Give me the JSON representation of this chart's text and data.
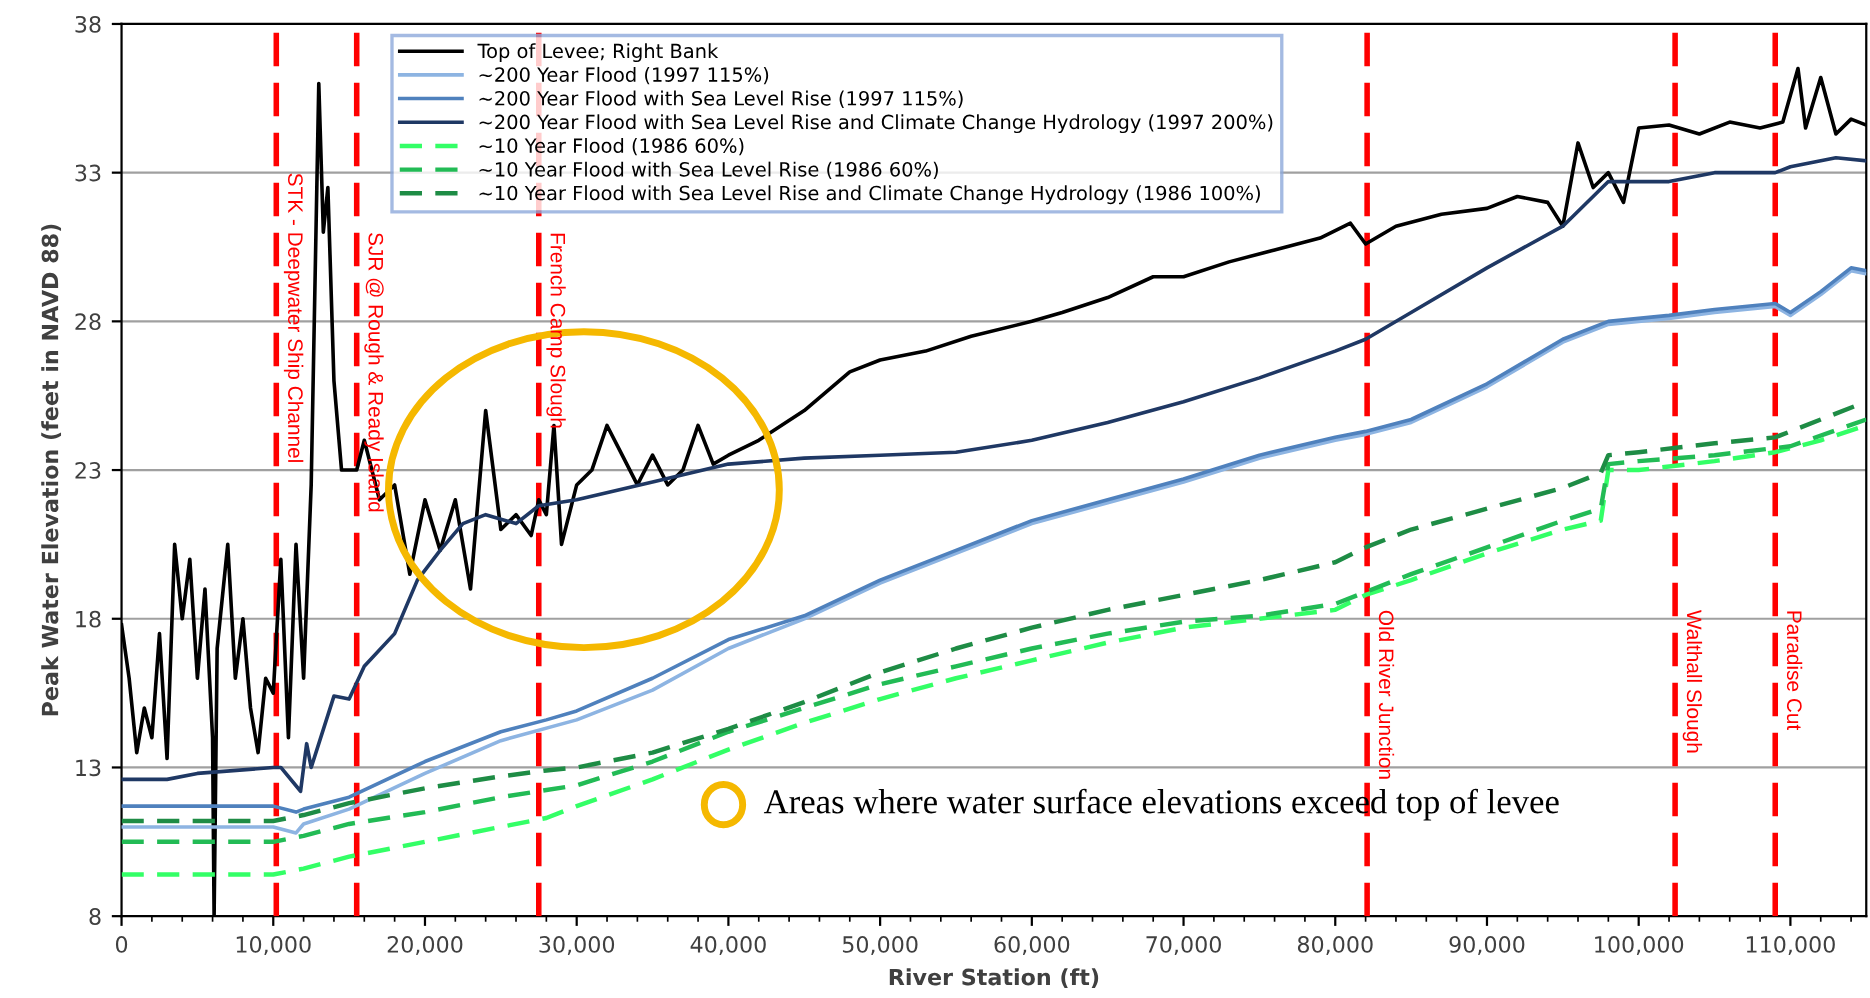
{
  "chart_data": {
    "type": "line",
    "xlabel": "River Station (ft)",
    "ylabel": "Peak Water Elevation (feet in NAVD 88)",
    "xlim": [
      0,
      115000
    ],
    "ylim": [
      8,
      38
    ],
    "xticks": [
      0,
      {
        "value": 10000,
        "label": "10,000"
      },
      {
        "value": 20000,
        "label": "20,000"
      },
      {
        "value": 30000,
        "label": "30,000"
      },
      {
        "value": 40000,
        "label": "40,000"
      },
      {
        "value": 50000,
        "label": "50,000"
      },
      {
        "value": 60000,
        "label": "60,000"
      },
      {
        "value": 70000,
        "label": "70,000"
      },
      {
        "value": 80000,
        "label": "80,000"
      },
      {
        "value": 90000,
        "label": "90,000"
      },
      {
        "value": 100000,
        "label": "100,000"
      },
      {
        "value": 110000,
        "label": "110,000"
      }
    ],
    "yticks": [
      8,
      13,
      18,
      23,
      28,
      33,
      38
    ],
    "grid": "y",
    "legend": "top",
    "marker": "none",
    "series": [
      {
        "name": "Top of Levee; Right Bank",
        "color": "#000000",
        "line_style": "solid",
        "x": [
          0,
          500,
          1000,
          1500,
          2000,
          2500,
          3000,
          3500,
          4000,
          4500,
          5000,
          5500,
          6000,
          6100,
          6300,
          7000,
          7500,
          8000,
          8500,
          9000,
          9500,
          10000,
          10500,
          11000,
          11500,
          12000,
          12500,
          13000,
          13300,
          13600,
          14000,
          14500,
          15500,
          16000,
          17000,
          18000,
          19000,
          20000,
          21000,
          22000,
          23000,
          24000,
          25000,
          26000,
          27000,
          27500,
          28000,
          28500,
          29000,
          30000,
          31000,
          32000,
          33000,
          34000,
          35000,
          36000,
          37000,
          38000,
          39000,
          40000,
          42000,
          45000,
          48000,
          50000,
          53000,
          56000,
          60000,
          62000,
          65000,
          68000,
          70000,
          73000,
          76000,
          79000,
          81000,
          82000,
          84000,
          87000,
          90000,
          92000,
          94000,
          95000,
          96000,
          97000,
          98000,
          99000,
          100000,
          102000,
          104000,
          106000,
          108000,
          109500,
          110500,
          111000,
          112000,
          113000,
          114000,
          115000
        ],
        "values": [
          17.8,
          16,
          13.5,
          15,
          14,
          17.5,
          13.3,
          20.5,
          18,
          20,
          16,
          19,
          14,
          8,
          17,
          20.5,
          16,
          18,
          15,
          13.5,
          16,
          15.5,
          20,
          14,
          20.5,
          16,
          22.5,
          36,
          31,
          32.5,
          26,
          23,
          23,
          24,
          22,
          22.5,
          19.5,
          22,
          20.3,
          22,
          19,
          25,
          21,
          21.5,
          20.8,
          22,
          21.5,
          24.5,
          20.5,
          22.5,
          23,
          24.5,
          23.5,
          22.5,
          23.5,
          22.5,
          23,
          24.5,
          23.2,
          23.5,
          24,
          25,
          26.3,
          26.7,
          27,
          27.5,
          28,
          28.3,
          28.8,
          29.5,
          29.5,
          30,
          30.4,
          30.8,
          31.3,
          30.6,
          31.2,
          31.6,
          31.8,
          32.2,
          32,
          31.2,
          34,
          32.5,
          33,
          32,
          34.5,
          34.6,
          34.3,
          34.7,
          34.5,
          34.7,
          36.5,
          34.5,
          36.2,
          34.3,
          34.8,
          34.6
        ]
      },
      {
        "name": "~200 Year Flood (1997 115%)",
        "color": "#8db4e2",
        "line_style": "solid",
        "x": [
          0,
          10000,
          11500,
          12000,
          15000,
          20000,
          25000,
          30000,
          35000,
          40000,
          45000,
          50000,
          55000,
          60000,
          65000,
          70000,
          75000,
          80000,
          82000,
          85000,
          90000,
          95000,
          98000,
          102000,
          105000,
          109000,
          110000,
          112000,
          114000,
          115000
        ],
        "values": [
          11.0,
          11.0,
          10.8,
          11.1,
          11.6,
          12.8,
          13.9,
          14.6,
          15.6,
          17.0,
          18.0,
          19.2,
          20.2,
          21.2,
          21.9,
          22.6,
          23.4,
          24.0,
          24.2,
          24.6,
          25.8,
          27.3,
          27.9,
          28.1,
          28.3,
          28.5,
          28.2,
          28.9,
          29.7,
          29.6
        ]
      },
      {
        "name": "~200 Year Flood with Sea Level Rise (1997 115%)",
        "color": "#4f81bd",
        "line_style": "solid",
        "x": [
          0,
          10000,
          11500,
          12000,
          15000,
          20000,
          25000,
          28000,
          30000,
          35000,
          40000,
          45000,
          50000,
          55000,
          60000,
          65000,
          70000,
          75000,
          80000,
          82000,
          85000,
          90000,
          95000,
          98000,
          102000,
          105000,
          109000,
          110000,
          112000,
          114000,
          115000
        ],
        "values": [
          11.7,
          11.7,
          11.5,
          11.6,
          12.0,
          13.2,
          14.2,
          14.6,
          14.9,
          16.0,
          17.3,
          18.1,
          19.3,
          20.3,
          21.3,
          22.0,
          22.7,
          23.5,
          24.1,
          24.3,
          24.7,
          25.9,
          27.4,
          28.0,
          28.2,
          28.4,
          28.6,
          28.3,
          29.0,
          29.8,
          29.7
        ]
      },
      {
        "name": "~200 Year Flood with Sea Level Rise and Climate Change Hydrology (1997 200%)",
        "color": "#1f3864",
        "line_style": "solid",
        "x": [
          0,
          3000,
          5000,
          10000,
          10500,
          11800,
          12200,
          12500,
          14000,
          15000,
          16000,
          18000,
          19500,
          21000,
          22500,
          24000,
          26000,
          27500,
          30000,
          35000,
          40000,
          45000,
          50000,
          55000,
          60000,
          65000,
          70000,
          75000,
          80000,
          82000,
          85000,
          90000,
          95000,
          98000,
          100000,
          102000,
          105000,
          109000,
          110000,
          113000,
          115000
        ],
        "values": [
          12.6,
          12.6,
          12.8,
          13.0,
          13.0,
          12.2,
          13.8,
          13.0,
          15.4,
          15.3,
          16.4,
          17.5,
          19.3,
          20.3,
          21.2,
          21.5,
          21.2,
          21.8,
          22.0,
          22.6,
          23.2,
          23.4,
          23.5,
          23.6,
          24.0,
          24.6,
          25.3,
          26.1,
          27.0,
          27.4,
          28.3,
          29.8,
          31.2,
          32.7,
          32.7,
          32.7,
          33.0,
          33.0,
          33.2,
          33.5,
          33.4
        ]
      },
      {
        "name": "~10 Year Flood (1986 60%)",
        "color": "#33ff66",
        "line_style": "dashed",
        "x": [
          0,
          10000,
          12000,
          15000,
          20000,
          25000,
          28000,
          30000,
          35000,
          40000,
          45000,
          50000,
          55000,
          60000,
          65000,
          70000,
          75000,
          80000,
          82000,
          85000,
          90000,
          95000,
          97500,
          98000,
          100000,
          105000,
          109000,
          112000,
          115000
        ],
        "values": [
          9.4,
          9.4,
          9.6,
          10.0,
          10.5,
          11.0,
          11.3,
          11.7,
          12.6,
          13.6,
          14.5,
          15.3,
          16.0,
          16.6,
          17.2,
          17.7,
          18.0,
          18.3,
          18.8,
          19.3,
          20.2,
          21.0,
          21.3,
          23.0,
          23.0,
          23.3,
          23.6,
          24.0,
          24.5
        ]
      },
      {
        "name": "~10 Year Flood with Sea Level Rise (1986 60%)",
        "color": "#22bb55",
        "line_style": "dashed",
        "x": [
          0,
          10000,
          12000,
          15000,
          20000,
          25000,
          30000,
          35000,
          40000,
          45000,
          50000,
          55000,
          60000,
          65000,
          70000,
          75000,
          80000,
          85000,
          90000,
          95000,
          97500,
          98000,
          100000,
          105000,
          110000,
          115000
        ],
        "values": [
          10.5,
          10.5,
          10.7,
          11.1,
          11.5,
          12.0,
          12.4,
          13.2,
          14.2,
          15.0,
          15.8,
          16.4,
          17.0,
          17.5,
          17.9,
          18.1,
          18.5,
          19.5,
          20.4,
          21.3,
          21.7,
          23.2,
          23.3,
          23.5,
          23.8,
          24.7
        ]
      },
      {
        "name": "~10 Year Flood with Sea Level Rise and Climate Change Hydrology (1986 100%)",
        "color": "#1e8c45",
        "line_style": "dashed",
        "x": [
          0,
          10000,
          12000,
          15000,
          20000,
          25000,
          28000,
          30000,
          35000,
          40000,
          45000,
          50000,
          55000,
          60000,
          65000,
          70000,
          75000,
          80000,
          82000,
          85000,
          90000,
          95000,
          97500,
          98000,
          100000,
          105000,
          109000,
          112000,
          115000
        ],
        "values": [
          11.2,
          11.2,
          11.4,
          11.8,
          12.3,
          12.7,
          12.9,
          13.0,
          13.5,
          14.3,
          15.2,
          16.2,
          17.0,
          17.7,
          18.3,
          18.8,
          19.3,
          19.9,
          20.4,
          21.0,
          21.7,
          22.4,
          22.9,
          23.5,
          23.6,
          23.9,
          24.1,
          24.7,
          25.3
        ]
      }
    ],
    "ref_lines": [
      {
        "axis": "x",
        "value": 10200,
        "label": "STK - Deepwater Ship Channel",
        "color": "#ff0000",
        "line_style": "dashed"
      },
      {
        "axis": "x",
        "value": 15500,
        "label": "SJR @ Rough & Ready Island",
        "color": "#ff0000",
        "line_style": "dashed"
      },
      {
        "axis": "x",
        "value": 27500,
        "label": "French Camp Slough",
        "color": "#ff0000",
        "line_style": "dashed"
      },
      {
        "axis": "x",
        "value": 82100,
        "label": "Old River Junction",
        "color": "#ff0000",
        "line_style": "dashed"
      },
      {
        "axis": "x",
        "value": 102400,
        "label": "Walthall Slough",
        "color": "#ff0000",
        "line_style": "dashed"
      },
      {
        "axis": "x",
        "value": 109000,
        "label": "Paradise Cut",
        "color": "#ff0000",
        "line_style": "dashed"
      }
    ],
    "annotations": [
      "Areas where water surface elevations exceed top of levee"
    ]
  }
}
